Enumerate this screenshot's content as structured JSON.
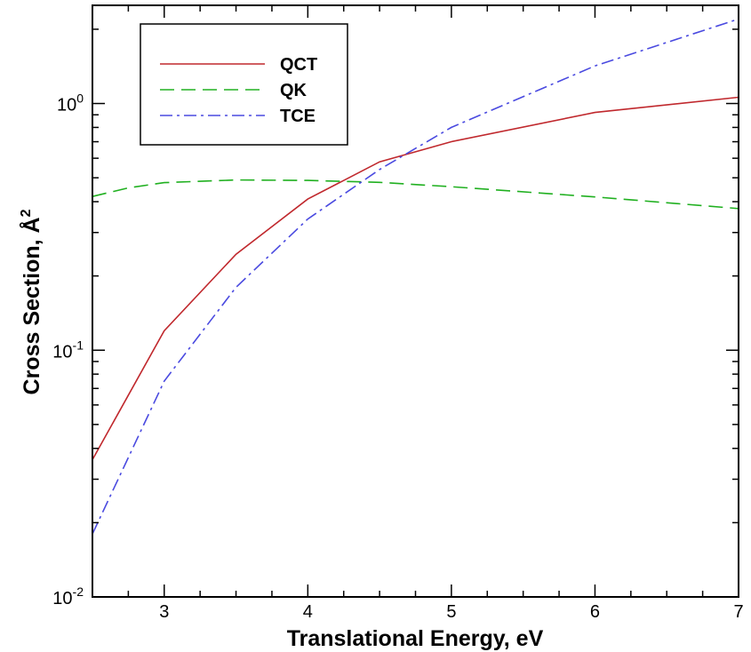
{
  "chart_data": {
    "type": "line",
    "title": "",
    "xlabel": "Translational Energy, eV",
    "ylabel": "Cross Section, Å",
    "ylabel_superscript": "2",
    "yscale": "log",
    "xlim": [
      2.5,
      7
    ],
    "ylim": [
      0.01,
      2.5
    ],
    "x_ticks": [
      3,
      4,
      5,
      6,
      7
    ],
    "y_ticks": [
      {
        "value": 0.01,
        "base": "10",
        "exp": "-2"
      },
      {
        "value": 0.1,
        "base": "10",
        "exp": "-1"
      },
      {
        "value": 1,
        "base": "10",
        "exp": "0"
      }
    ],
    "grid": false,
    "legend_position": "top-left",
    "series": [
      {
        "name": "QCT",
        "color": "#c0282d",
        "dash": "solid",
        "x": [
          2.5,
          3,
          3.5,
          4,
          4.5,
          5,
          6,
          7
        ],
        "y": [
          0.036,
          0.12,
          0.245,
          0.41,
          0.58,
          0.7,
          0.92,
          1.06
        ]
      },
      {
        "name": "QK",
        "color": "#20b020",
        "dash": "dashed",
        "x": [
          2.5,
          2.75,
          3,
          3.5,
          4,
          4.5,
          5,
          6,
          7
        ],
        "y": [
          0.42,
          0.455,
          0.478,
          0.49,
          0.488,
          0.479,
          0.46,
          0.418,
          0.375
        ]
      },
      {
        "name": "TCE",
        "color": "#4a4ae0",
        "dash": "dashdot",
        "x": [
          2.5,
          3,
          3.5,
          4,
          4.5,
          5,
          6,
          7
        ],
        "y": [
          0.018,
          0.075,
          0.18,
          0.34,
          0.54,
          0.8,
          1.42,
          2.2
        ]
      }
    ]
  }
}
